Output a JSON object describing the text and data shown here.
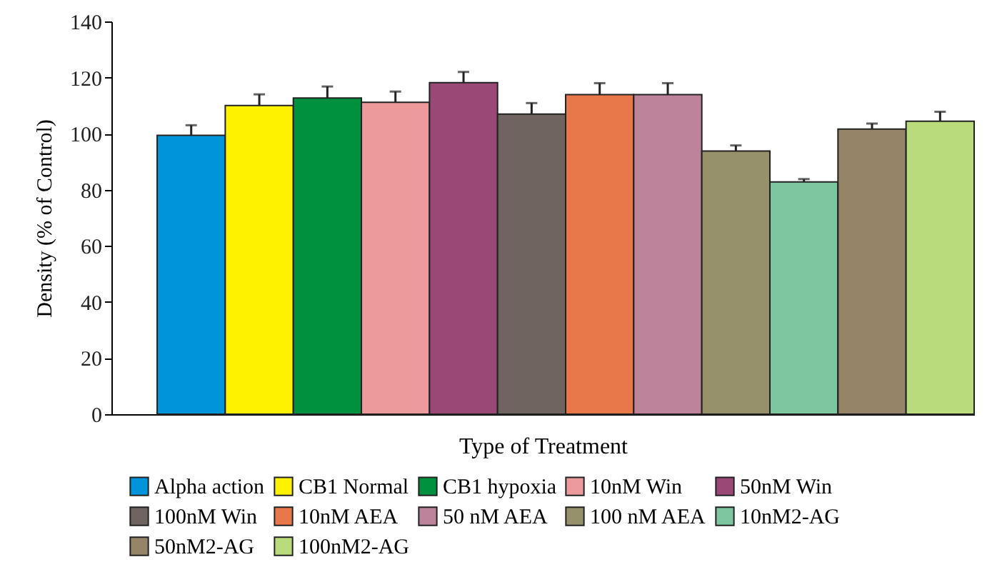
{
  "chart_data": {
    "type": "bar",
    "xlabel": "Type of Treatment",
    "ylabel": "Density (% of Control)",
    "categories": [
      null
    ],
    "series": [
      {
        "name": "Alpha action",
        "color": "#0095db",
        "values": [
          99.4
        ],
        "errors": [
          [
            99.4,
            103
          ]
        ]
      },
      {
        "name": "CB1 Normal",
        "color": "#fff200",
        "values": [
          110
        ],
        "errors": [
          [
            110,
            114
          ]
        ]
      },
      {
        "name": "CB1 hypoxia",
        "color": "#00913f",
        "values": [
          112.7
        ],
        "errors": [
          [
            112.7,
            116.8
          ]
        ]
      },
      {
        "name": "10nM Win",
        "color": "#ec9a9c",
        "values": [
          111.2
        ],
        "errors": [
          [
            111.2,
            115
          ]
        ]
      },
      {
        "name": "50nM Win",
        "color": "#9a4977",
        "values": [
          118.2
        ],
        "errors": [
          [
            118.2,
            122
          ]
        ]
      },
      {
        "name": "100nM Win",
        "color": "#6f6460",
        "values": [
          107
        ],
        "errors": [
          [
            107,
            110.9
          ]
        ]
      },
      {
        "name": "10nM AEA",
        "color": "#e8774a",
        "values": [
          113.9
        ],
        "errors": [
          [
            113.9,
            118
          ]
        ]
      },
      {
        "name": "50 nM AEA",
        "color": "#bd839b",
        "values": [
          113.9
        ],
        "errors": [
          [
            113.9,
            118
          ]
        ]
      },
      {
        "name": "100 nM AEA",
        "color": "#96916a",
        "values": [
          93.8
        ],
        "errors": [
          [
            93.8,
            95.8
          ]
        ]
      },
      {
        "name": "10nM2-AG",
        "color": "#7ec6a0",
        "values": [
          82.8
        ],
        "errors": [
          [
            82.8,
            83.8
          ]
        ]
      },
      {
        "name": "50nM2-AG",
        "color": "#968468",
        "values": [
          101.6
        ],
        "errors": [
          [
            101.6,
            103.6
          ]
        ]
      },
      {
        "name": "100nM2-AG",
        "color": "#badb7b",
        "values": [
          104.4
        ],
        "errors": [
          [
            104.4,
            107.8
          ]
        ]
      }
    ],
    "ylim": [
      0,
      140
    ],
    "yticks": [
      0,
      20,
      40,
      60,
      80,
      100,
      120,
      140
    ],
    "tick_labels": "y",
    "legend": "bottom",
    "grid": false
  }
}
